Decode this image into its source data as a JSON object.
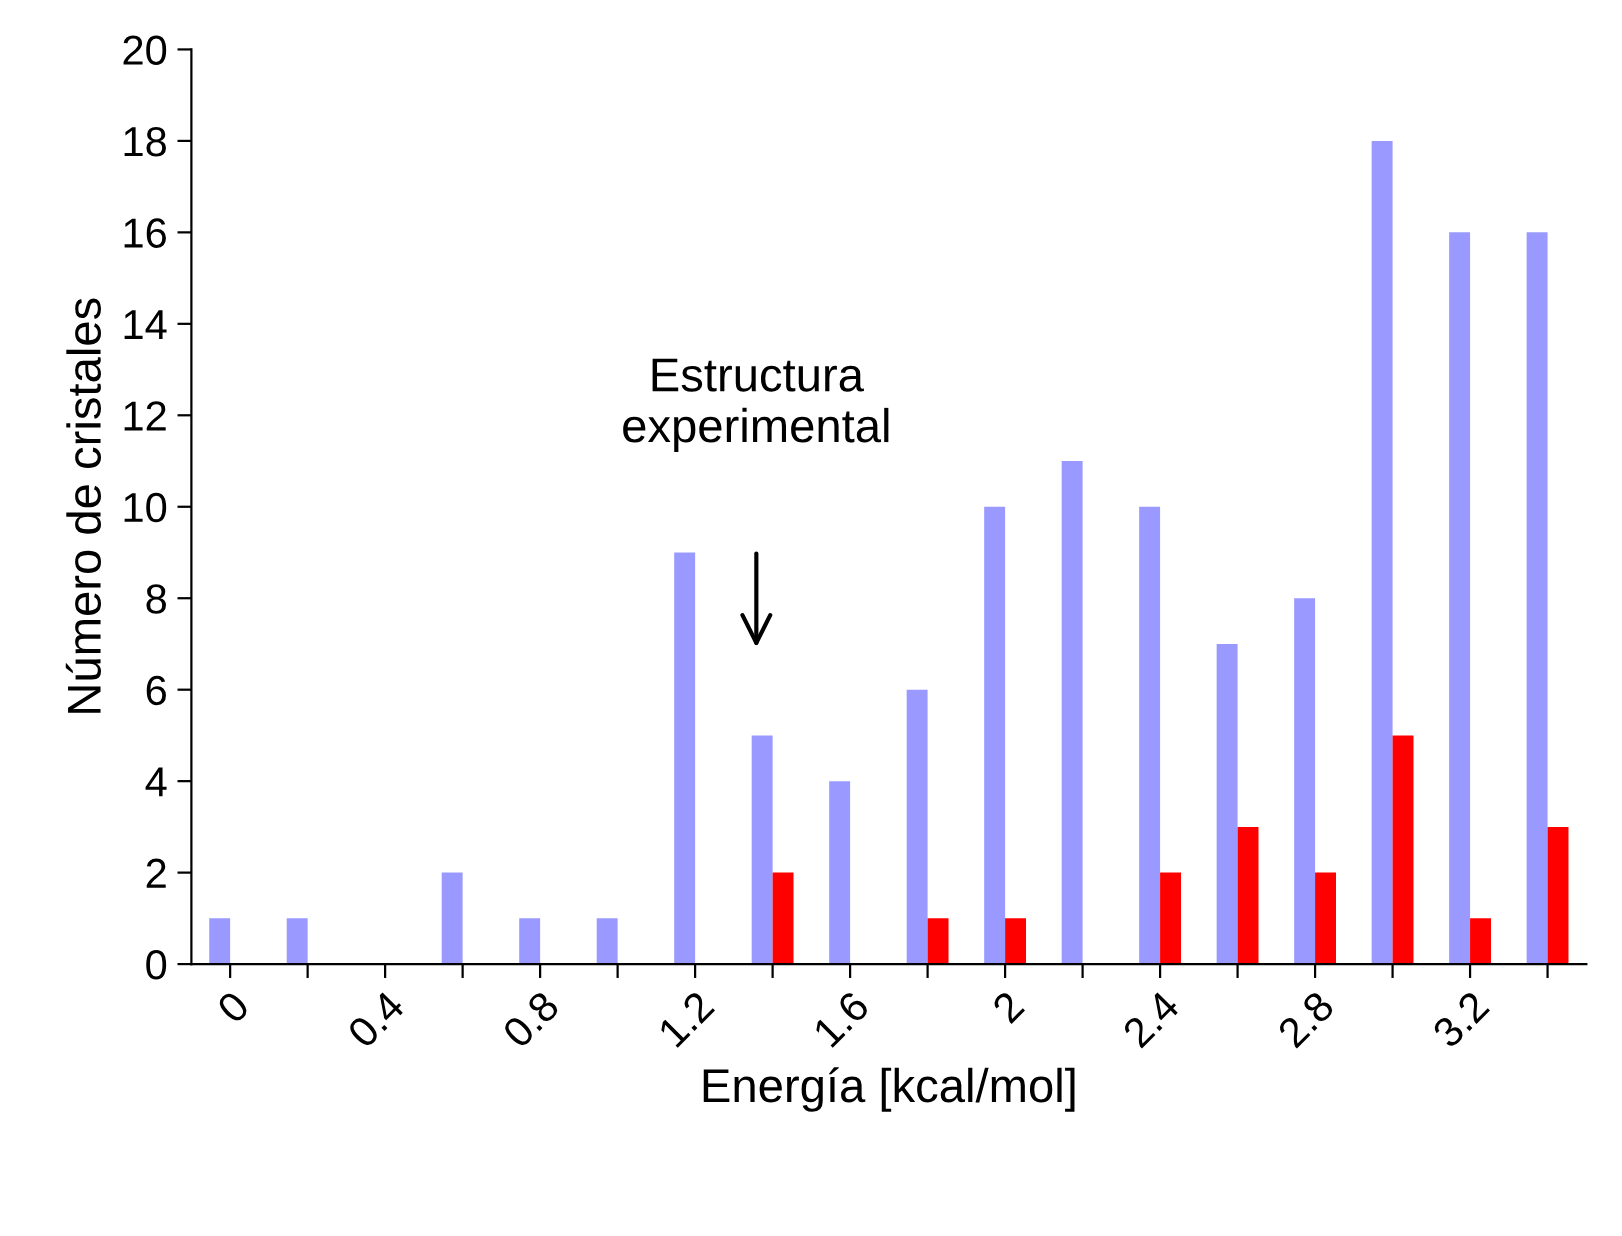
{
  "chart_data": {
    "type": "bar",
    "xlabel": "Energía [kcal/mol]",
    "ylabel": "Número de cristales",
    "categories": [
      "0",
      null,
      "0.4",
      null,
      "0.8",
      null,
      "1.2",
      null,
      "1.6",
      null,
      "2",
      null,
      "2.4",
      null,
      "2.8",
      null,
      "3.2",
      null
    ],
    "series": [
      {
        "color": "#9999ff",
        "values": [
          1,
          1,
          null,
          2,
          1,
          1,
          9,
          5,
          4,
          6,
          10,
          11,
          10,
          7,
          8,
          18,
          16,
          16
        ]
      },
      {
        "color": "#ff0000",
        "values": [
          null,
          null,
          null,
          null,
          null,
          null,
          null,
          2,
          null,
          1,
          1,
          null,
          2,
          3,
          2,
          5,
          1,
          3
        ]
      }
    ],
    "ylim": [
      0,
      20
    ],
    "yticks": [
      0,
      2,
      4,
      6,
      8,
      10,
      12,
      14,
      16,
      18,
      20
    ],
    "grid": false,
    "annotations": [
      "Estructura\nexperimental"
    ]
  }
}
